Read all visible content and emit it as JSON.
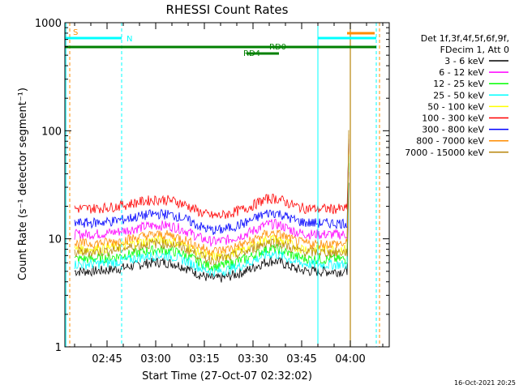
{
  "chart_data": {
    "type": "line",
    "title": "RHESSI Count Rates",
    "xlabel": "Start Time (27-Oct-07 02:32:02)",
    "ylabel": "Count Rate (s⁻¹ detector segment⁻¹)",
    "y_scale": "log",
    "ylim": [
      1,
      1000
    ],
    "xlim_minutes_after_0232": [
      0,
      100
    ],
    "x_ticks": [
      {
        "label": "02:45",
        "minutes_after_0232": 13
      },
      {
        "label": "03:00",
        "minutes_after_0232": 28
      },
      {
        "label": "03:15",
        "minutes_after_0232": 43
      },
      {
        "label": "03:30",
        "minutes_after_0232": 58
      },
      {
        "label": "03:45",
        "minutes_after_0232": 73
      },
      {
        "label": "04:00",
        "minutes_after_0232": 88
      }
    ],
    "y_ticks": [
      {
        "label": "1",
        "value": 1
      },
      {
        "label": "10",
        "value": 10
      },
      {
        "label": "100",
        "value": 100
      },
      {
        "label": "1000",
        "value": 1000
      }
    ],
    "legend_header": [
      "Det 1f,3f,4f,5f,6f,9f,",
      "FDecim 1, Att 0"
    ],
    "series": [
      {
        "name": "3 - 6 keV",
        "color": "#000000",
        "base": 5.0
      },
      {
        "name": "6 - 12 keV",
        "color": "#ff00ff",
        "base": 11.0
      },
      {
        "name": "12 - 25 keV",
        "color": "#00ff00",
        "base": 6.5
      },
      {
        "name": "25 - 50 keV",
        "color": "#00ffff",
        "base": 5.8
      },
      {
        "name": "50 - 100 keV",
        "color": "#ffff00",
        "base": 8.0
      },
      {
        "name": "100 - 300 keV",
        "color": "#ff0000",
        "base": 19.0
      },
      {
        "name": "300 - 800 keV",
        "color": "#0000ff",
        "base": 14.0
      },
      {
        "name": "800 - 7000 keV",
        "color": "#ff8c00",
        "base": 9.0
      },
      {
        "name": "7000 - 15000 keV",
        "color": "#b8860b",
        "base": 7.5
      }
    ],
    "spike_end": {
      "minutes_after_0232": 87.5,
      "peak": 110
    },
    "annotations": {
      "S": "S",
      "N": "N",
      "RD0": "RD0",
      "RD4": "RD4"
    },
    "attenuator_lines_minutes": [
      0.3,
      78,
      97,
      88
    ],
    "footer_stamp": "16-Oct-2021 20:25"
  }
}
